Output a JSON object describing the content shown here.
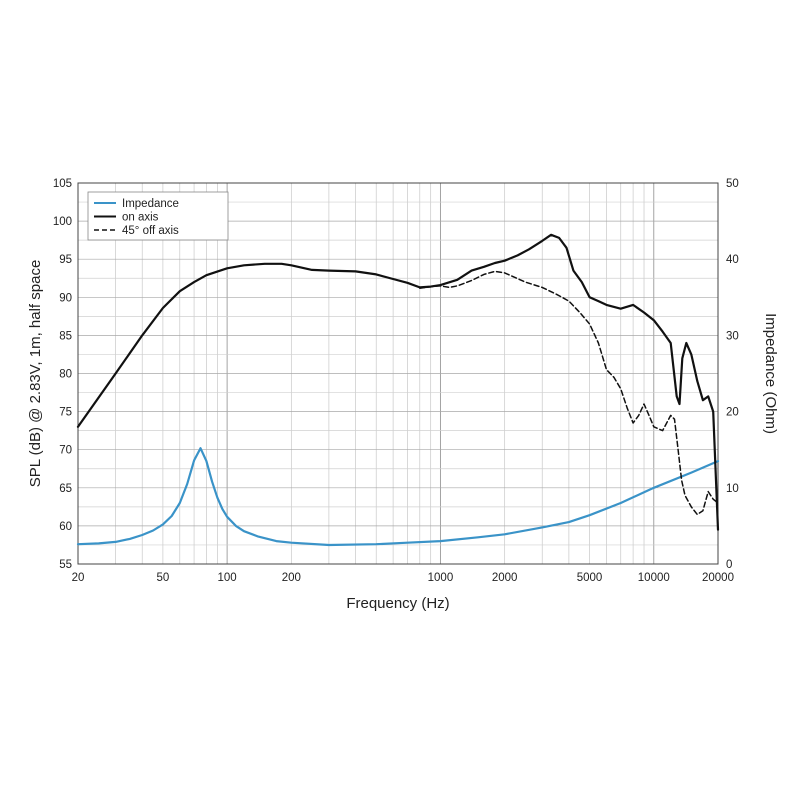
{
  "chart_data": {
    "type": "line",
    "title": "",
    "xlabel": "Frequency (Hz)",
    "ylabel_left": "SPL (dB) @ 2.83V, 1m, half space",
    "ylabel_right": "Impedance (Ohm)",
    "x_scale": "log",
    "xlim": [
      20,
      20000
    ],
    "ylim_left": [
      55,
      105
    ],
    "ylim_right": [
      0,
      50
    ],
    "grid": true,
    "legend_position": "top-left",
    "x_ticks": [
      {
        "value": 20,
        "label": "20"
      },
      {
        "value": 50,
        "label": "50"
      },
      {
        "value": 100,
        "label": "100"
      },
      {
        "value": 200,
        "label": "200"
      },
      {
        "value": 1000,
        "label": "1000"
      },
      {
        "value": 2000,
        "label": "2000"
      },
      {
        "value": 5000,
        "label": "5000"
      },
      {
        "value": 10000,
        "label": "10000"
      },
      {
        "value": 20000,
        "label": "20000"
      }
    ],
    "y_left_ticks": [
      "55",
      "60",
      "65",
      "70",
      "75",
      "80",
      "85",
      "90",
      "95",
      "100",
      "105"
    ],
    "y_right_ticks": [
      "0",
      "10",
      "20",
      "30",
      "40",
      "50"
    ],
    "series": [
      {
        "name": "Impedance",
        "axis": "right",
        "color": "#3a93c8",
        "style": "solid",
        "points": [
          [
            20,
            2.6
          ],
          [
            25,
            2.7
          ],
          [
            30,
            2.9
          ],
          [
            35,
            3.3
          ],
          [
            40,
            3.8
          ],
          [
            45,
            4.4
          ],
          [
            50,
            5.2
          ],
          [
            55,
            6.3
          ],
          [
            60,
            8.0
          ],
          [
            65,
            10.5
          ],
          [
            70,
            13.6
          ],
          [
            75,
            15.2
          ],
          [
            80,
            13.5
          ],
          [
            85,
            10.8
          ],
          [
            90,
            8.7
          ],
          [
            95,
            7.2
          ],
          [
            100,
            6.2
          ],
          [
            110,
            5.0
          ],
          [
            120,
            4.3
          ],
          [
            140,
            3.6
          ],
          [
            170,
            3.0
          ],
          [
            200,
            2.8
          ],
          [
            300,
            2.5
          ],
          [
            500,
            2.6
          ],
          [
            700,
            2.8
          ],
          [
            1000,
            3.0
          ],
          [
            1500,
            3.5
          ],
          [
            2000,
            3.9
          ],
          [
            3000,
            4.8
          ],
          [
            4000,
            5.5
          ],
          [
            5000,
            6.4
          ],
          [
            7000,
            8.0
          ],
          [
            10000,
            10.0
          ],
          [
            15000,
            12.0
          ],
          [
            20000,
            13.5
          ]
        ]
      },
      {
        "name": "on axis",
        "axis": "left",
        "color": "#111111",
        "style": "solid",
        "points": [
          [
            20,
            73
          ],
          [
            30,
            80
          ],
          [
            40,
            85
          ],
          [
            50,
            88.6
          ],
          [
            60,
            90.8
          ],
          [
            70,
            92.0
          ],
          [
            80,
            92.9
          ],
          [
            100,
            93.8
          ],
          [
            120,
            94.2
          ],
          [
            150,
            94.4
          ],
          [
            180,
            94.4
          ],
          [
            200,
            94.2
          ],
          [
            250,
            93.6
          ],
          [
            300,
            93.5
          ],
          [
            400,
            93.4
          ],
          [
            500,
            93.0
          ],
          [
            600,
            92.4
          ],
          [
            700,
            91.9
          ],
          [
            800,
            91.3
          ],
          [
            900,
            91.4
          ],
          [
            1000,
            91.6
          ],
          [
            1200,
            92.3
          ],
          [
            1400,
            93.5
          ],
          [
            1600,
            94.0
          ],
          [
            1800,
            94.5
          ],
          [
            2000,
            94.8
          ],
          [
            2300,
            95.5
          ],
          [
            2600,
            96.3
          ],
          [
            3000,
            97.4
          ],
          [
            3300,
            98.2
          ],
          [
            3600,
            97.8
          ],
          [
            3900,
            96.5
          ],
          [
            4200,
            93.5
          ],
          [
            4600,
            92.0
          ],
          [
            5000,
            90.0
          ],
          [
            5500,
            89.5
          ],
          [
            6000,
            89.0
          ],
          [
            7000,
            88.5
          ],
          [
            8000,
            89.0
          ],
          [
            9000,
            88.0
          ],
          [
            10000,
            87.0
          ],
          [
            11000,
            85.5
          ],
          [
            12000,
            84.0
          ],
          [
            12800,
            77.0
          ],
          [
            13200,
            76.0
          ],
          [
            13600,
            82.0
          ],
          [
            14200,
            84.0
          ],
          [
            15000,
            82.5
          ],
          [
            16000,
            79.0
          ],
          [
            17000,
            76.5
          ],
          [
            18000,
            77.0
          ],
          [
            19000,
            75.0
          ],
          [
            20000,
            59.5
          ]
        ]
      },
      {
        "name": "45° off axis",
        "axis": "left",
        "color": "#111111",
        "style": "dashed",
        "points": [
          [
            800,
            91.2
          ],
          [
            900,
            91.4
          ],
          [
            1000,
            91.5
          ],
          [
            1100,
            91.3
          ],
          [
            1200,
            91.5
          ],
          [
            1400,
            92.2
          ],
          [
            1600,
            93.0
          ],
          [
            1800,
            93.4
          ],
          [
            2000,
            93.2
          ],
          [
            2500,
            92.0
          ],
          [
            3000,
            91.3
          ],
          [
            3500,
            90.4
          ],
          [
            4000,
            89.5
          ],
          [
            4500,
            88.0
          ],
          [
            5000,
            86.5
          ],
          [
            5500,
            84.0
          ],
          [
            6000,
            80.5
          ],
          [
            6500,
            79.5
          ],
          [
            7000,
            78.0
          ],
          [
            7500,
            75.5
          ],
          [
            8000,
            73.5
          ],
          [
            8500,
            74.5
          ],
          [
            9000,
            76.0
          ],
          [
            9500,
            74.5
          ],
          [
            10000,
            73.0
          ],
          [
            11000,
            72.5
          ],
          [
            12000,
            74.5
          ],
          [
            12500,
            74.0
          ],
          [
            13000,
            70.0
          ],
          [
            13500,
            66.0
          ],
          [
            14000,
            64.0
          ],
          [
            15000,
            62.5
          ],
          [
            16000,
            61.5
          ],
          [
            17000,
            62.0
          ],
          [
            18000,
            64.5
          ],
          [
            19000,
            63.5
          ],
          [
            20000,
            63.0
          ]
        ]
      }
    ]
  }
}
